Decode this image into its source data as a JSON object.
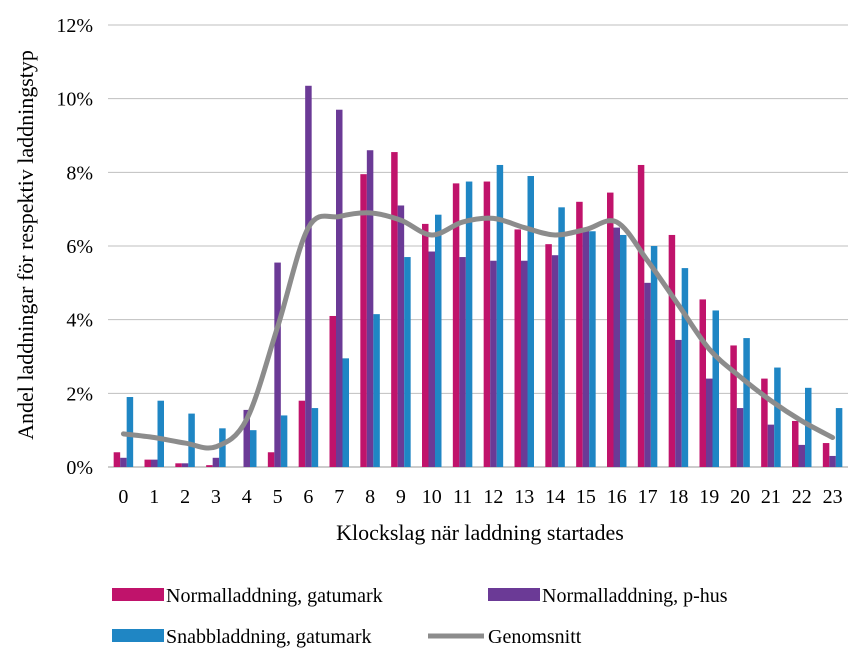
{
  "chart_data": {
    "type": "bar",
    "xlabel": "Klockslag när laddning startades",
    "ylabel": "Andel laddningar för respektiv laddningstyp",
    "categories": [
      "0",
      "1",
      "2",
      "3",
      "4",
      "5",
      "6",
      "7",
      "8",
      "9",
      "10",
      "11",
      "12",
      "13",
      "14",
      "15",
      "16",
      "17",
      "18",
      "19",
      "20",
      "21",
      "22",
      "23"
    ],
    "ylim": [
      0,
      12
    ],
    "yticks": [
      0,
      2,
      4,
      6,
      8,
      10,
      12
    ],
    "ytick_labels": [
      "0%",
      "2%",
      "4%",
      "6%",
      "8%",
      "10%",
      "12%"
    ],
    "grid": true,
    "legend_position": "bottom",
    "series": [
      {
        "name": "Normalladdning, gatumark",
        "type": "bar",
        "color": "#C0136B",
        "values": [
          0.4,
          0.2,
          0.1,
          0.05,
          0.0,
          0.4,
          1.8,
          4.1,
          7.95,
          8.55,
          6.6,
          7.7,
          7.75,
          6.45,
          6.05,
          7.2,
          7.45,
          8.2,
          6.3,
          4.55,
          3.3,
          2.4,
          1.25,
          0.65
        ]
      },
      {
        "name": "Normalladdning, p-hus",
        "type": "bar",
        "color": "#6B3A96",
        "values": [
          0.25,
          0.2,
          0.1,
          0.25,
          1.55,
          5.55,
          10.35,
          9.7,
          8.6,
          7.1,
          5.85,
          5.7,
          5.6,
          5.6,
          5.75,
          6.5,
          6.5,
          5.0,
          3.45,
          2.4,
          1.6,
          1.15,
          0.6,
          0.3
        ]
      },
      {
        "name": "Snabbladdning, gatumark",
        "type": "bar",
        "color": "#1F86C4",
        "values": [
          1.9,
          1.8,
          1.45,
          1.05,
          1.0,
          1.4,
          1.6,
          2.95,
          4.15,
          5.7,
          6.85,
          7.75,
          8.2,
          7.9,
          7.05,
          6.4,
          6.3,
          6.0,
          5.4,
          4.25,
          3.5,
          2.7,
          2.15,
          1.6
        ]
      },
      {
        "name": "Genomsnitt",
        "type": "line",
        "color": "#8C8C8C",
        "values": [
          0.9,
          0.8,
          0.65,
          0.55,
          1.3,
          3.8,
          6.5,
          6.8,
          6.9,
          6.7,
          6.3,
          6.65,
          6.75,
          6.5,
          6.3,
          6.45,
          6.65,
          5.6,
          4.4,
          3.2,
          2.45,
          1.8,
          1.25,
          0.8
        ]
      }
    ]
  }
}
